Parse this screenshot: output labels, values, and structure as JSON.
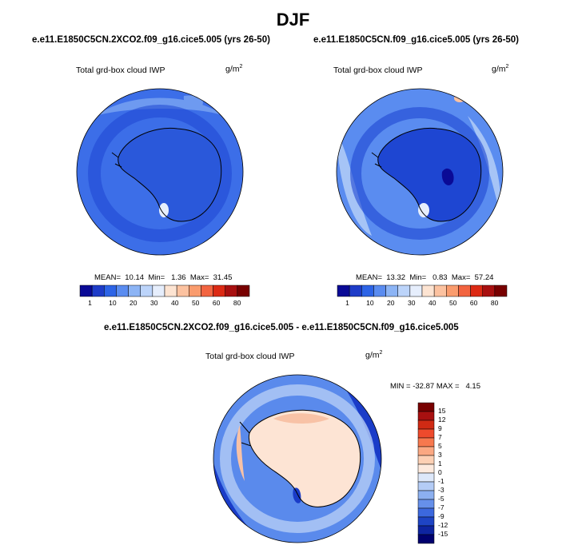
{
  "figure": {
    "season": "DJF",
    "diff_title": "e.e11.E1850C5CN.2XCO2.f09_g16.cice5.005 - e.e11.E1850C5CN.f09_g16.cice5.005"
  },
  "panels": [
    {
      "run_title": "e.e11.E1850C5CN.2XCO2.f09_g16.cice5.005 (yrs 26-50)",
      "variable": "Total grd-box cloud IWP",
      "units_base": "g/m",
      "units_exp": "2",
      "mean": "10.14",
      "min": "1.36",
      "max": "31.45",
      "stats_text": "MEAN=  10.14  Min=   1.36  Max=  31.45"
    },
    {
      "run_title": "e.e11.E1850C5CN.f09_g16.cice5.005 (yrs 26-50)",
      "variable": "Total grd-box cloud IWP",
      "units_base": "g/m",
      "units_exp": "2",
      "mean": "13.32",
      "min": "0.83",
      "max": "57.24",
      "stats_text": "MEAN=  13.32  Min=   0.83  Max=  57.24"
    },
    {
      "variable": "Total grd-box cloud IWP",
      "units_base": "g/m",
      "units_exp": "2",
      "min": "-32.87",
      "max": "4.15",
      "stats_text": "MIN = -32.87 MAX =   4.15"
    }
  ],
  "colorbar_abs": {
    "labels": [
      "1",
      "10",
      "20",
      "30",
      "40",
      "50",
      "60",
      "80"
    ],
    "colors": [
      "#0a0a96",
      "#1e3cc8",
      "#2d64e6",
      "#5a8cf0",
      "#8cb4f5",
      "#bcd4fa",
      "#e6eefc",
      "#fde4d2",
      "#fcc2a0",
      "#fa9c6e",
      "#f26440",
      "#dc2a14",
      "#a81010",
      "#780000"
    ]
  },
  "colorbar_diff": {
    "labels": [
      "15",
      "12",
      "9",
      "7",
      "5",
      "3",
      "1",
      "0",
      "-1",
      "-3",
      "-5",
      "-7",
      "-9",
      "-12",
      "-15"
    ],
    "colors": [
      "#780000",
      "#a81010",
      "#d02a14",
      "#ee4a2c",
      "#f7784e",
      "#fba882",
      "#fdd0b4",
      "#fdeade",
      "#dde8fa",
      "#b4ccf6",
      "#8cb0f0",
      "#6690ea",
      "#3c68de",
      "#1e44c4",
      "#0e24a0",
      "#00006e"
    ]
  },
  "map_colors": {
    "ocean_mid": "#3c6ee8",
    "ocean_dark": "#1e46d2",
    "ocean_light": "#6e9af0",
    "ocean_pale": "#a6c4f6",
    "diff_land": "#fde4d4",
    "diff_warm": "#f8c2a6",
    "diff_ocean": "#5a8aec",
    "diff_dark": "#1a3cc8"
  }
}
